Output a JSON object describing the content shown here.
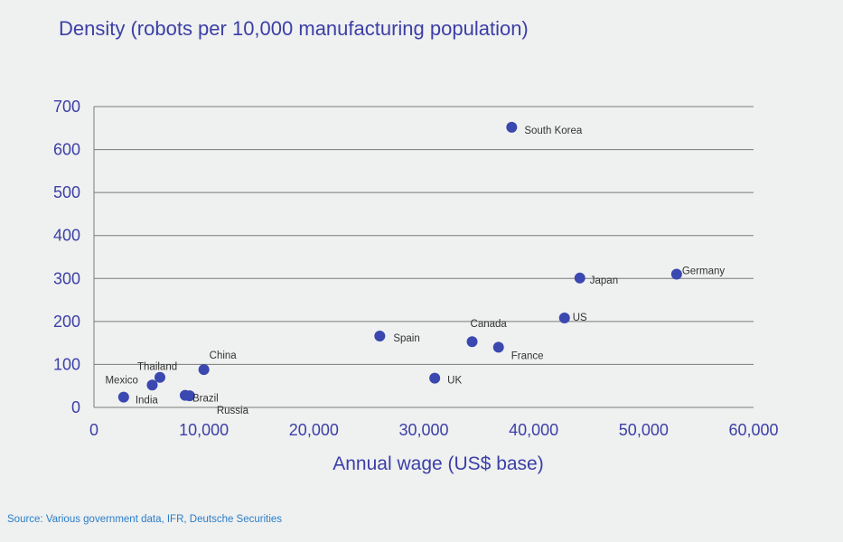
{
  "chart_data": {
    "type": "scatter",
    "title": "Density (robots per 10,000 manufacturing population)",
    "xlabel": "Annual wage (US$ base)",
    "ylabel": "",
    "xlim": [
      0,
      60000
    ],
    "ylim": [
      0,
      700
    ],
    "x_ticks": [
      0,
      10000,
      20000,
      30000,
      40000,
      50000,
      60000
    ],
    "x_tick_labels": [
      "0",
      "10,000",
      "20,000",
      "30,000",
      "40,000",
      "50,000",
      "60,000"
    ],
    "y_ticks": [
      0,
      100,
      200,
      300,
      400,
      500,
      600,
      700
    ],
    "y_tick_labels": [
      "0",
      "100",
      "200",
      "300",
      "400",
      "500",
      "600",
      "700"
    ],
    "grid": "horizontal",
    "points": [
      {
        "label": "South Korea",
        "x": 38000,
        "y": 652
      },
      {
        "label": "Germany",
        "x": 53000,
        "y": 310
      },
      {
        "label": "Japan",
        "x": 44200,
        "y": 301
      },
      {
        "label": "US",
        "x": 42800,
        "y": 208
      },
      {
        "label": "Spain",
        "x": 26000,
        "y": 166
      },
      {
        "label": "Canada",
        "x": 34400,
        "y": 153
      },
      {
        "label": "France",
        "x": 36800,
        "y": 140
      },
      {
        "label": "UK",
        "x": 31000,
        "y": 68
      },
      {
        "label": "China",
        "x": 10000,
        "y": 88
      },
      {
        "label": "Thailand",
        "x": 6000,
        "y": 70
      },
      {
        "label": "Mexico",
        "x": 5300,
        "y": 52
      },
      {
        "label": "Brazil",
        "x": 8300,
        "y": 28
      },
      {
        "label": "Russia",
        "x": 8700,
        "y": 27
      },
      {
        "label": "India",
        "x": 2700,
        "y": 24
      }
    ]
  },
  "colors": {
    "point": "#3a48b0",
    "text_primary": "#3b3fa6",
    "gridline": "#7a7a7a",
    "source_text": "#2a7ec8"
  },
  "source": "Source: Various government data, IFR, Deutsche Securities"
}
